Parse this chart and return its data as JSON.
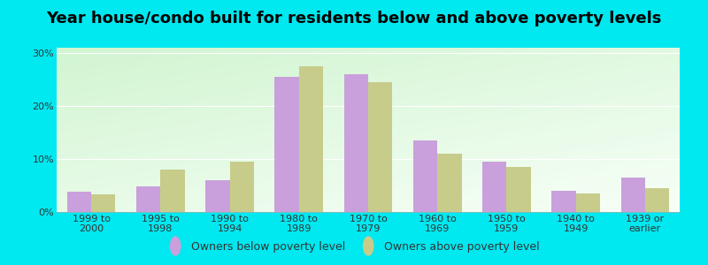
{
  "title": "Year house/condo built for residents below and above poverty levels",
  "categories": [
    "1999 to\n2000",
    "1995 to\n1998",
    "1990 to\n1994",
    "1980 to\n1989",
    "1970 to\n1979",
    "1960 to\n1969",
    "1950 to\n1959",
    "1940 to\n1949",
    "1939 or\nearlier"
  ],
  "below_poverty": [
    3.8,
    4.9,
    6.0,
    25.5,
    26.0,
    13.5,
    9.5,
    4.0,
    6.5
  ],
  "above_poverty": [
    3.3,
    8.0,
    9.5,
    27.5,
    24.5,
    11.0,
    8.5,
    3.5,
    4.5
  ],
  "below_color": "#c9a0dc",
  "above_color": "#c8cc8a",
  "background_outer": "#00e8f0",
  "ylim": [
    0,
    31
  ],
  "yticks": [
    0,
    10,
    20,
    30
  ],
  "ytick_labels": [
    "0%",
    "10%",
    "20%",
    "30%"
  ],
  "legend_below": "Owners below poverty level",
  "legend_above": "Owners above poverty level",
  "title_fontsize": 13,
  "tick_fontsize": 8,
  "legend_fontsize": 9,
  "bar_width": 0.35,
  "grad_topleft": [
    0.82,
    0.96,
    0.82
  ],
  "grad_bottomright": [
    0.97,
    1.0,
    0.97
  ]
}
